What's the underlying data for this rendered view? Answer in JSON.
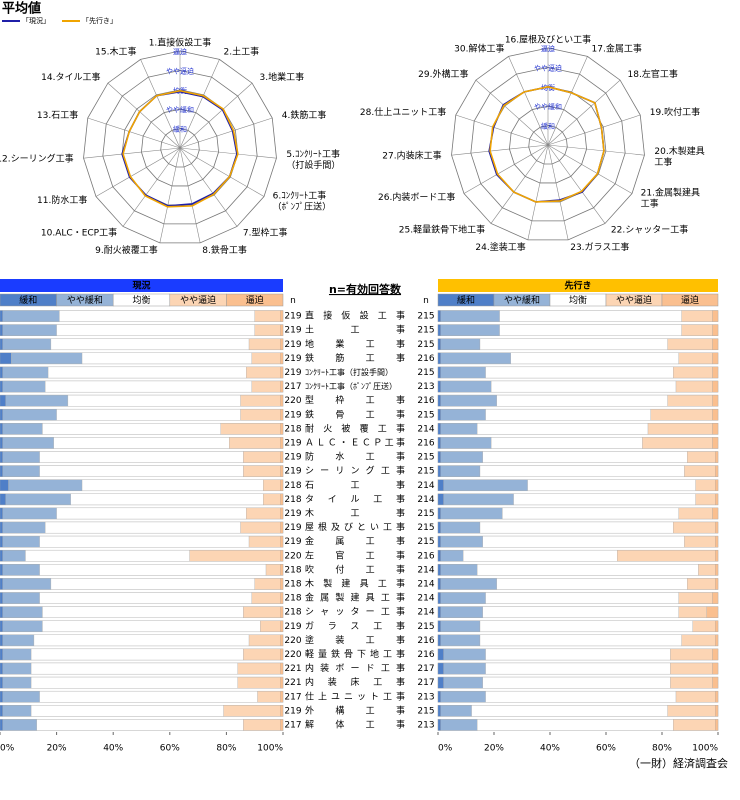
{
  "title": "平均値",
  "center_label": "n=有効回答数",
  "source": "（一財）経済調査会",
  "chart_data": [
    {
      "type": "radar",
      "rlim": [
        0,
        5
      ],
      "rticks": [
        {
          "value": 1,
          "label": "緩和"
        },
        {
          "value": 2,
          "label": "やや緩和"
        },
        {
          "value": 3,
          "label": "均衡"
        },
        {
          "value": 4,
          "label": "やや逼迫"
        },
        {
          "value": 5,
          "label": "逼迫"
        }
      ],
      "categories": [
        "1.直接仮設工事",
        "2.土工事",
        "3.地業工事",
        "4.鉄筋工事",
        [
          "5.ｺﾝｸﾘｰﾄ工事",
          "（打設手間）"
        ],
        [
          "6.ｺﾝｸﾘｰﾄ工事",
          "（ﾎﾟﾝﾌﾟ圧送）"
        ],
        "7.型枠工事",
        "8.鉄骨工事",
        "9.耐火被覆工事",
        "10.ALC・ECP工事",
        "11.防水工事",
        "12.シーリング工事",
        "13.石工事",
        "14.タイル工事",
        "15.木工事"
      ],
      "series": [
        {
          "name": "「現況」",
          "color": "#1f1fa8",
          "values": [
            2.9,
            2.9,
            2.95,
            2.85,
            2.95,
            2.95,
            2.9,
            2.95,
            3.05,
            3.0,
            3.0,
            3.0,
            2.75,
            2.8,
            2.95
          ]
        },
        {
          "name": "「先行き」",
          "color": "#f0a400",
          "values": [
            2.95,
            2.95,
            3.0,
            2.9,
            3.0,
            2.95,
            2.95,
            3.05,
            3.1,
            3.05,
            2.95,
            2.95,
            2.75,
            2.8,
            2.95
          ]
        }
      ]
    },
    {
      "type": "radar",
      "rlim": [
        0,
        5
      ],
      "rticks": [
        {
          "value": 1,
          "label": "緩和"
        },
        {
          "value": 2,
          "label": "やや緩和"
        },
        {
          "value": 3,
          "label": "均衡"
        },
        {
          "value": 4,
          "label": "やや逼迫"
        },
        {
          "value": 5,
          "label": "逼迫"
        }
      ],
      "categories": [
        "16.屋根及びとい工事",
        "17.金属工事",
        "18.左官工事",
        "19.吹付工事",
        [
          "20.木製建具",
          "工事"
        ],
        [
          "21.金属製建具",
          "工事"
        ],
        "22.シャッター工事",
        "23.ガラス工事",
        "24.塗装工事",
        "25.軽量鉄骨下地工事",
        "26.内装ボード工事",
        "27.内装床工事",
        "28.仕上ユニット工事",
        "29.外構工事",
        "30.解体工事"
      ],
      "series": [
        {
          "color": "#1f1fa8",
          "values": [
            3.0,
            2.95,
            3.25,
            2.9,
            2.9,
            2.95,
            3.0,
            2.9,
            3.0,
            3.0,
            3.05,
            3.05,
            2.95,
            3.1,
            3.0
          ]
        },
        {
          "color": "#f0a400",
          "values": [
            3.0,
            2.95,
            3.25,
            2.9,
            2.9,
            2.95,
            2.95,
            2.95,
            3.0,
            3.0,
            3.0,
            3.0,
            3.0,
            3.05,
            3.0
          ]
        }
      ]
    },
    {
      "type": "stacked_bar",
      "title": "現況",
      "header_color": "#1a3cff",
      "n_label": "n",
      "xlim": [
        0,
        100
      ],
      "xticks": [
        {
          "value": 0,
          "label": "0%"
        },
        {
          "value": 20,
          "label": "20%"
        },
        {
          "value": 40,
          "label": "40%"
        },
        {
          "value": 60,
          "label": "60%"
        },
        {
          "value": 80,
          "label": "80%"
        },
        {
          "value": 100,
          "label": "100%"
        }
      ],
      "categories": [
        "直接仮設工事",
        "土工事",
        "地業工事",
        "鉄筋工事",
        "ｺﾝｸﾘｰﾄ工事（打設手間）",
        "ｺﾝｸﾘｰﾄ工事（ﾎﾟﾝﾌﾟ圧送）",
        "型枠工事",
        "鉄骨工事",
        "耐火被覆工事",
        "ＡＬＣ・ＥＣＰ工事",
        "防水工事",
        "シーリング工事",
        "石工事",
        "タイル工事",
        "木工事",
        "屋根及びとい工事",
        "金属工事",
        "左官工事",
        "吹付工事",
        "木製建具工事",
        "金属製建具工事",
        "シャッター工事",
        "ガラス工事",
        "塗装工事",
        "軽量鉄骨下地工事",
        "内装ボード工事",
        "内装床工事",
        "仕上ユニット工事",
        "外構工事",
        "解体工事"
      ],
      "n": [
        219,
        219,
        219,
        219,
        219,
        217,
        220,
        219,
        218,
        219,
        219,
        219,
        218,
        218,
        219,
        219,
        219,
        220,
        218,
        218,
        218,
        218,
        219,
        220,
        220,
        221,
        221,
        217,
        219,
        217
      ],
      "series": [
        {
          "name": "緩和",
          "color": "#4f7fc8",
          "values": [
            1,
            1,
            1,
            4,
            1,
            1,
            2,
            1,
            1,
            1,
            1,
            1,
            3,
            2,
            1,
            1,
            1,
            1,
            1,
            1,
            1,
            1,
            1,
            1,
            1,
            1,
            1,
            1,
            1,
            1
          ]
        },
        {
          "name": "やや緩和",
          "color": "#95b3d7",
          "values": [
            20,
            19,
            17,
            25,
            16,
            15,
            22,
            19,
            14,
            18,
            13,
            13,
            26,
            23,
            19,
            15,
            13,
            8,
            13,
            17,
            13,
            14,
            14,
            11,
            10,
            10,
            10,
            13,
            10,
            12
          ]
        },
        {
          "name": "均衡",
          "color": "#ffffff",
          "values": [
            69,
            70,
            70,
            60,
            70,
            73,
            61,
            65,
            63,
            62,
            72,
            72,
            64,
            68,
            67,
            69,
            74,
            58,
            80,
            72,
            75,
            71,
            77,
            76,
            75,
            73,
            73,
            77,
            68,
            73
          ]
        },
        {
          "name": "やや逼迫",
          "color": "#fcd5b4",
          "values": [
            9,
            9,
            11,
            10,
            12,
            10,
            14,
            14,
            21,
            18,
            13,
            13,
            6,
            6,
            12,
            14,
            11,
            32,
            5,
            9,
            10,
            13,
            7,
            11,
            13,
            15,
            15,
            8,
            20,
            13
          ]
        },
        {
          "name": "逼迫",
          "color": "#fabf8f",
          "values": [
            1,
            1,
            1,
            1,
            1,
            1,
            1,
            1,
            1,
            1,
            1,
            1,
            1,
            1,
            1,
            1,
            1,
            1,
            1,
            1,
            1,
            1,
            1,
            1,
            1,
            1,
            1,
            1,
            1,
            1
          ]
        }
      ]
    },
    {
      "type": "stacked_bar",
      "title": "先行き",
      "header_color": "#ffc000",
      "n_label": "n",
      "xlim": [
        0,
        100
      ],
      "xticks": [
        {
          "value": 0,
          "label": "0%"
        },
        {
          "value": 20,
          "label": "20%"
        },
        {
          "value": 40,
          "label": "40%"
        },
        {
          "value": 60,
          "label": "60%"
        },
        {
          "value": 80,
          "label": "80%"
        },
        {
          "value": 100,
          "label": "100%"
        }
      ],
      "n": [
        215,
        215,
        215,
        216,
        215,
        213,
        216,
        215,
        214,
        216,
        215,
        215,
        214,
        214,
        215,
        215,
        215,
        216,
        214,
        214,
        214,
        214,
        215,
        216,
        216,
        217,
        217,
        213,
        215,
        213
      ],
      "series": [
        {
          "name": "緩和",
          "color": "#4f7fc8",
          "values": [
            1,
            1,
            1,
            1,
            1,
            1,
            1,
            1,
            1,
            1,
            1,
            1,
            2,
            2,
            1,
            1,
            1,
            1,
            1,
            1,
            1,
            1,
            1,
            1,
            2,
            2,
            2,
            1,
            1,
            1
          ]
        },
        {
          "name": "やや緩和",
          "color": "#95b3d7",
          "values": [
            21,
            21,
            14,
            25,
            16,
            18,
            20,
            16,
            13,
            18,
            15,
            14,
            30,
            25,
            22,
            14,
            15,
            8,
            13,
            20,
            16,
            15,
            14,
            14,
            15,
            15,
            14,
            16,
            11,
            13
          ]
        },
        {
          "name": "均衡",
          "color": "#ffffff",
          "values": [
            65,
            65,
            67,
            60,
            67,
            66,
            61,
            59,
            61,
            54,
            73,
            73,
            60,
            65,
            63,
            69,
            72,
            55,
            79,
            68,
            69,
            70,
            76,
            72,
            66,
            66,
            67,
            68,
            70,
            70
          ]
        },
        {
          "name": "やや逼迫",
          "color": "#fcd5b4",
          "values": [
            11,
            11,
            16,
            12,
            14,
            13,
            16,
            22,
            23,
            25,
            10,
            11,
            7,
            7,
            12,
            15,
            11,
            35,
            6,
            10,
            12,
            10,
            8,
            12,
            15,
            15,
            15,
            14,
            17,
            15
          ]
        },
        {
          "name": "逼迫",
          "color": "#fabf8f",
          "values": [
            2,
            2,
            2,
            2,
            2,
            2,
            2,
            2,
            2,
            2,
            1,
            1,
            1,
            1,
            2,
            1,
            1,
            1,
            1,
            1,
            2,
            4,
            1,
            1,
            2,
            2,
            2,
            1,
            1,
            1
          ]
        }
      ]
    }
  ]
}
